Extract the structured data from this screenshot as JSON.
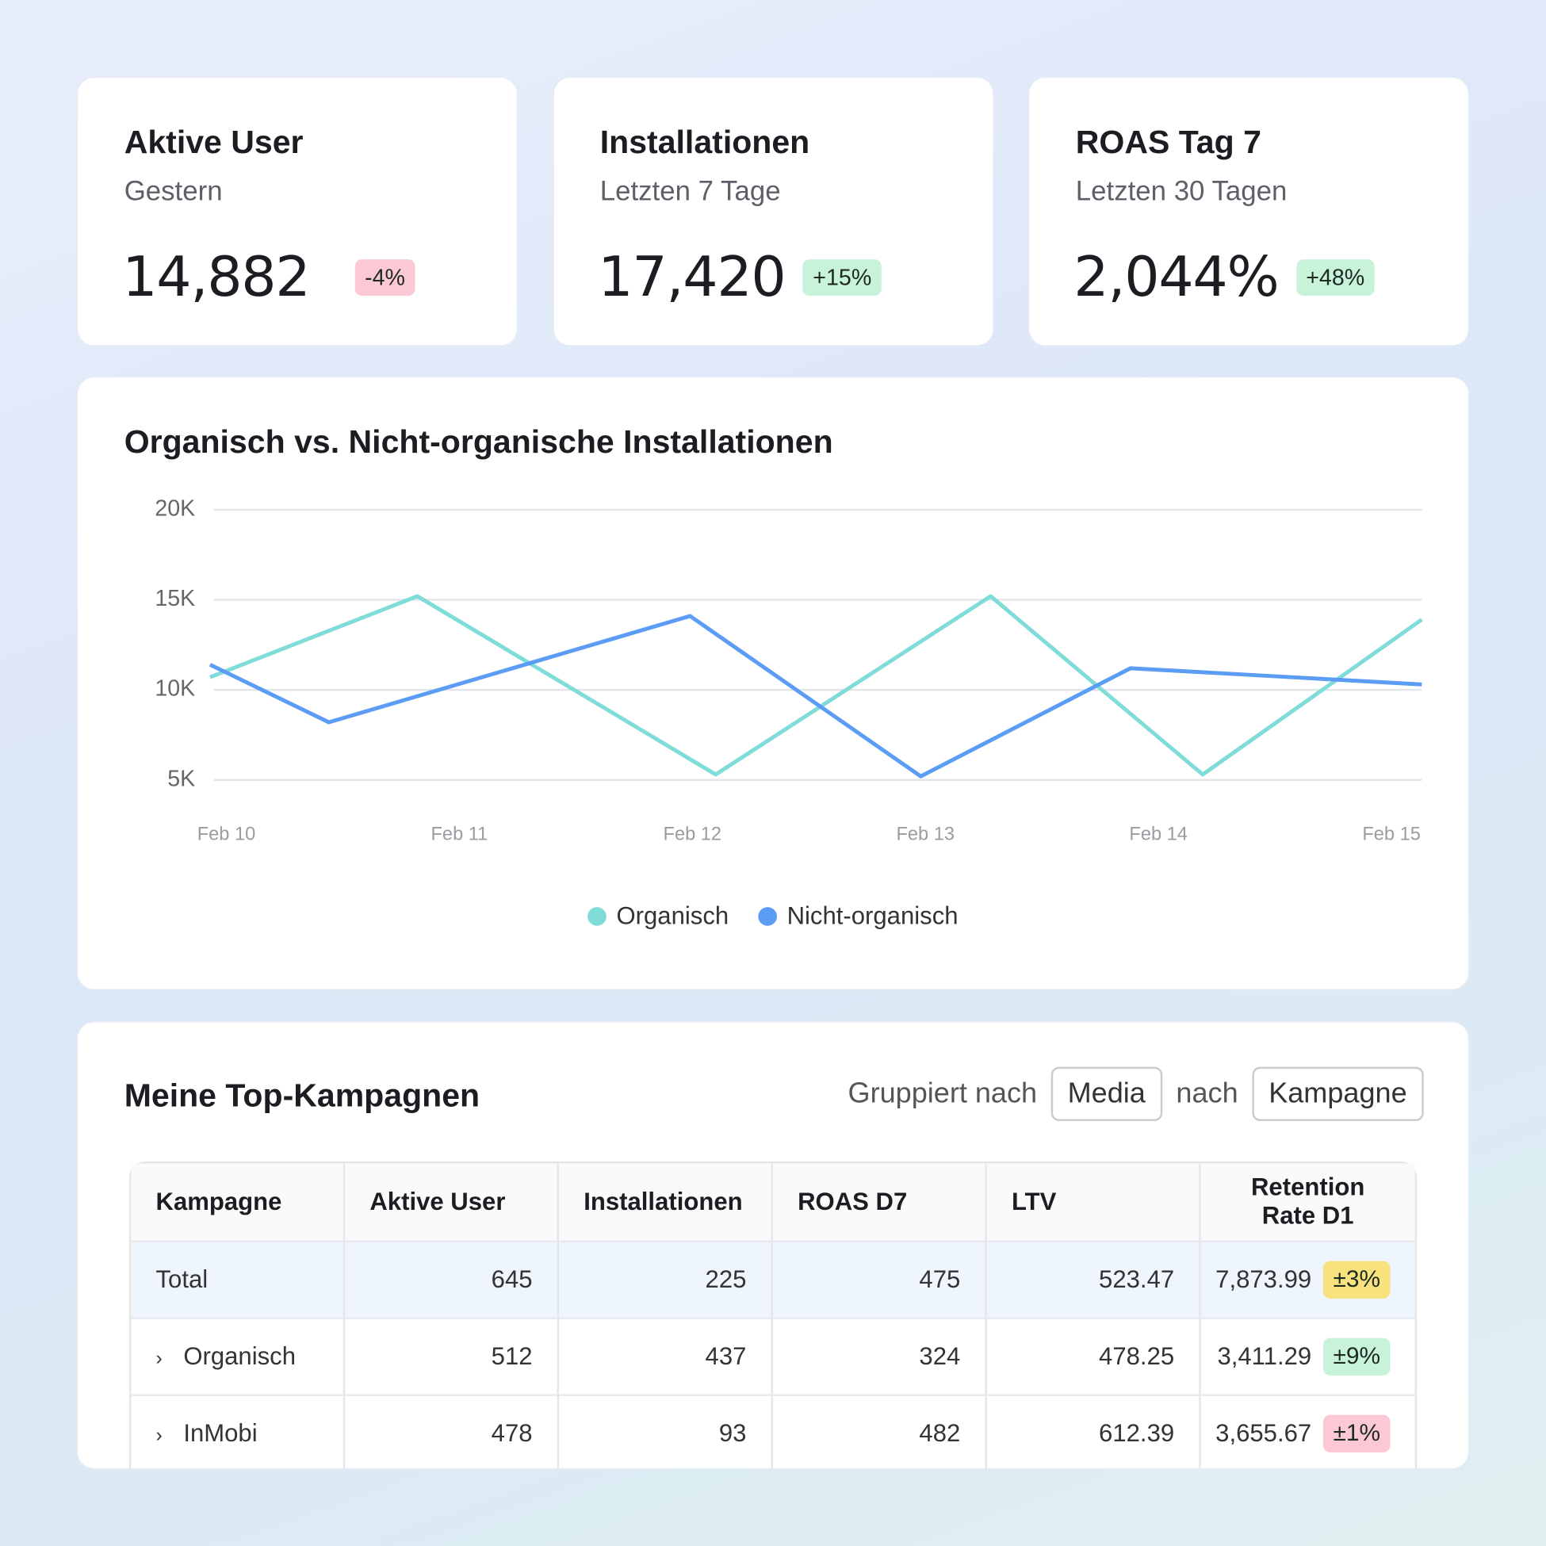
{
  "kpis": [
    {
      "title": "Aktive User",
      "subtitle": "Gestern",
      "value": "14,882",
      "change": "-4%",
      "change_color": "#fbc8d4"
    },
    {
      "title": "Installationen",
      "subtitle": "Letzten 7 Tage",
      "value": "17,420",
      "change": "+15%",
      "change_color": "#c9f2db"
    },
    {
      "title": "ROAS Tag 7",
      "subtitle": "Letzten 30 Tagen",
      "value": "2,044%",
      "change": "+48%",
      "change_color": "#c9f2db"
    }
  ],
  "chart_data": {
    "type": "line",
    "title": "Organisch vs. Nicht-organische Installationen",
    "xlim": [
      9.93,
      15.13
    ],
    "xticks": [
      {
        "value": 10,
        "label": "Feb 10"
      },
      {
        "value": 11,
        "label": "Feb 11"
      },
      {
        "value": 12,
        "label": "Feb 12"
      },
      {
        "value": 13,
        "label": "Feb 13"
      },
      {
        "value": 14,
        "label": "Feb 14"
      },
      {
        "value": 15,
        "label": "Feb 15"
      }
    ],
    "ylim": [
      5000,
      20000
    ],
    "yticks": [
      {
        "value": 5000,
        "label": "5K"
      },
      {
        "value": 10000,
        "label": "10K"
      },
      {
        "value": 15000,
        "label": "15K"
      },
      {
        "value": 20000,
        "label": "20K"
      }
    ],
    "grid": true,
    "series": [
      {
        "name": "Organisch",
        "color": "#7fdcd9",
        "x": [
          9.93,
          10.82,
          12.1,
          13.28,
          14.19,
          15.13
        ],
        "values": [
          10700,
          15200,
          5300,
          15200,
          5300,
          13900
        ]
      },
      {
        "name": "Nicht-organisch",
        "color": "#5b9cf5",
        "x": [
          9.93,
          10.44,
          11.99,
          12.98,
          13.88,
          15.13
        ],
        "values": [
          11400,
          8200,
          14100,
          5200,
          11200,
          10300
        ]
      }
    ]
  },
  "table": {
    "title": "Meine Top-Kampagnen",
    "group_label": "Gruppiert nach",
    "group_by": [
      "Media",
      "Kampagne"
    ],
    "joiner": "nach",
    "columns": [
      "Kampagne",
      "Aktive User",
      "Installationen",
      "ROAS D7",
      "LTV",
      "Retention Rate D1"
    ],
    "rows": [
      {
        "cells": [
          "Total",
          "645",
          "225",
          "475",
          "523.47",
          "7,873.99"
        ],
        "badge": "±3%",
        "badge_color": "#f7e27e",
        "expandable": false,
        "highlight": true
      },
      {
        "cells": [
          "Organisch",
          "512",
          "437",
          "324",
          "478.25",
          "3,411.29"
        ],
        "badge": "±9%",
        "badge_color": "#c9f2db",
        "expandable": true,
        "highlight": false
      },
      {
        "cells": [
          "InMobi",
          "478",
          "93",
          "482",
          "612.39",
          "3,655.67"
        ],
        "badge": "±1%",
        "badge_color": "#fbc8d4",
        "expandable": true,
        "highlight": false
      }
    ]
  }
}
